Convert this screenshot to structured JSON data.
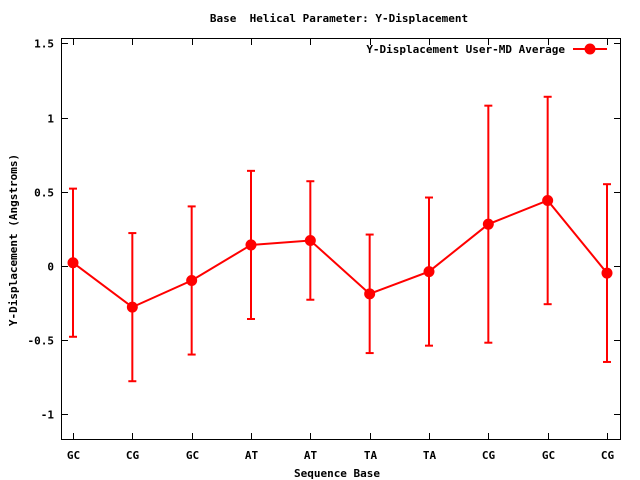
{
  "chart_data": {
    "type": "line",
    "title": "Base  Helical Parameter: Y-Displacement",
    "xlabel": "Sequence Base",
    "ylabel": "Y-Displacement (Angstroms)",
    "categories": [
      "GC",
      "CG",
      "GC",
      "AT",
      "AT",
      "TA",
      "TA",
      "CG",
      "GC",
      "CG"
    ],
    "ylim": [
      -1.17,
      1.53
    ],
    "yticks": [
      {
        "value": 1.5,
        "label": "1.5"
      },
      {
        "value": 1,
        "label": "1"
      },
      {
        "value": 0.5,
        "label": "0.5"
      },
      {
        "value": 0,
        "label": "0"
      },
      {
        "value": -0.5,
        "label": "-0.5"
      },
      {
        "value": -1,
        "label": "-1"
      }
    ],
    "grid": false,
    "legend_position": "top-right",
    "series": [
      {
        "name": "Y-Displacement User-MD Average",
        "color": "#ff0000",
        "values": [
          0.02,
          -0.28,
          -0.1,
          0.14,
          0.17,
          -0.19,
          -0.04,
          0.28,
          0.44,
          -0.05
        ],
        "err_low": [
          -0.48,
          -0.78,
          -0.6,
          -0.36,
          -0.23,
          -0.59,
          -0.54,
          -0.52,
          -0.26,
          -0.65
        ],
        "err_high": [
          0.52,
          0.22,
          0.4,
          0.64,
          0.57,
          0.21,
          0.46,
          1.08,
          1.14,
          0.55
        ]
      }
    ]
  }
}
